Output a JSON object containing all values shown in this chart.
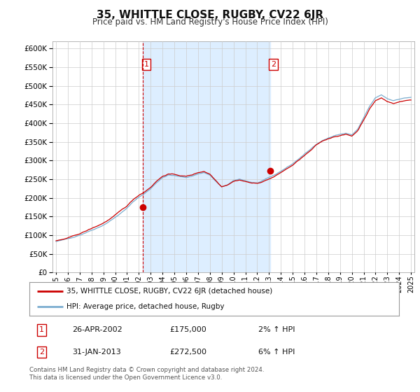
{
  "title": "35, WHITTLE CLOSE, RUGBY, CV22 6JR",
  "subtitle": "Price paid vs. HM Land Registry's House Price Index (HPI)",
  "ylim": [
    0,
    620000
  ],
  "yticks": [
    0,
    50000,
    100000,
    150000,
    200000,
    250000,
    300000,
    350000,
    400000,
    450000,
    500000,
    550000,
    600000
  ],
  "hpi_color": "#7aadcf",
  "property_color": "#cc0000",
  "vline_color": "#cc0000",
  "shade_color": "#ddeeff",
  "background_color": "#ffffff",
  "grid_color": "#cccccc",
  "purchase1_x": 2002.32,
  "purchase1_price": 175000,
  "purchase2_x": 2013.08,
  "purchase2_price": 272500,
  "legend1": "35, WHITTLE CLOSE, RUGBY, CV22 6JR (detached house)",
  "legend2": "HPI: Average price, detached house, Rugby",
  "table_row1": [
    "1",
    "26-APR-2002",
    "£175,000",
    "2% ↑ HPI"
  ],
  "table_row2": [
    "2",
    "31-JAN-2013",
    "£272,500",
    "6% ↑ HPI"
  ],
  "footer": "Contains HM Land Registry data © Crown copyright and database right 2024.\nThis data is licensed under the Open Government Licence v3.0.",
  "xtick_years": [
    1995,
    1996,
    1997,
    1998,
    1999,
    2000,
    2001,
    2002,
    2003,
    2004,
    2005,
    2006,
    2007,
    2008,
    2009,
    2010,
    2011,
    2012,
    2013,
    2014,
    2015,
    2016,
    2017,
    2018,
    2019,
    2020,
    2021,
    2022,
    2023,
    2024,
    2025
  ],
  "xlim_left": 1994.7,
  "xlim_right": 2025.3
}
